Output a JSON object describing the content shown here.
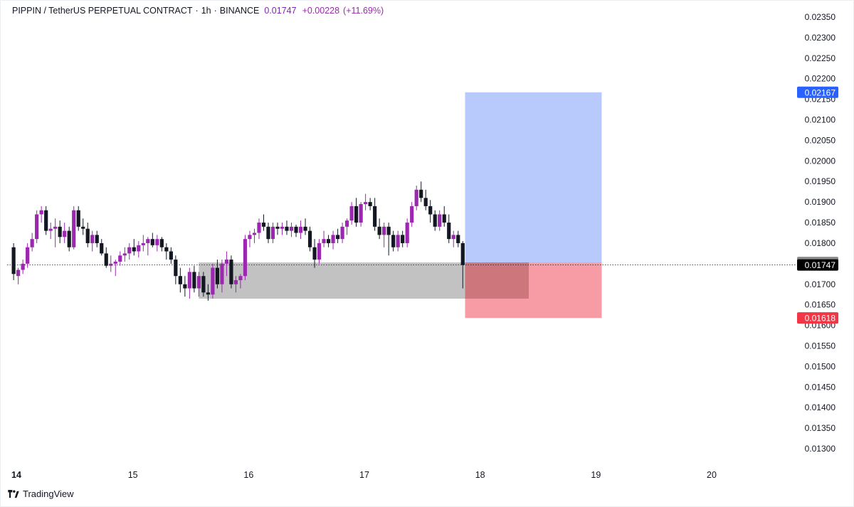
{
  "header": {
    "symbol": "PIPPIN / TetherUS PERPETUAL CONTRACT",
    "timeframe": "1h",
    "exchange": "BINANCE",
    "last_price": "0.01747",
    "change": "+0.00228",
    "change_pct": "(+11.69%)"
  },
  "footer": {
    "brand": "TradingView"
  },
  "colors": {
    "bull": "#9c27b0",
    "bear": "#131722",
    "profit_zone": "#b8c9fb",
    "loss_zone": "#f7979f",
    "support_zone": "#c2c2c2",
    "target_badge": "#2962ff",
    "stop_badge": "#f23645"
  },
  "chart_data": {
    "type": "candlestick",
    "title": "PIPPIN / TetherUS PERPETUAL CONTRACT · 1h · BINANCE",
    "ylim": [
      0.0128,
      0.0238
    ],
    "y_ticks": [
      "0.02350",
      "0.02300",
      "0.02250",
      "0.02200",
      "0.02150",
      "0.02100",
      "0.02050",
      "0.02000",
      "0.01950",
      "0.01900",
      "0.01850",
      "0.01800",
      "0.01750",
      "0.01700",
      "0.01650",
      "0.01600",
      "0.01550",
      "0.01500",
      "0.01450",
      "0.01400",
      "0.01350",
      "0.01300"
    ],
    "x_labels": [
      "14",
      "15",
      "16",
      "17",
      "18",
      "19",
      "20"
    ],
    "x_label_days": [
      14,
      15,
      16,
      17,
      18,
      19,
      20
    ],
    "price_labels": [
      {
        "value": 0.02167,
        "text": "0.02167",
        "role": "target"
      },
      {
        "value": 0.01753,
        "text": "0.01753",
        "role": "entry"
      },
      {
        "value": 0.01747,
        "text": "0.01747",
        "role": "last"
      },
      {
        "value": 0.01618,
        "text": "0.01618",
        "role": "stop"
      }
    ],
    "current_price": 0.01747,
    "long_position": {
      "start_day": 17.87,
      "end_day": 19.05,
      "entry": 0.01753,
      "target": 0.02167,
      "stop": 0.01618
    },
    "support_zone": {
      "start_day": 15.57,
      "end_day": 18.42,
      "top": 0.01753,
      "bottom": 0.01665
    },
    "candles": [
      {
        "day": 13.97,
        "o": 0.0179,
        "h": 0.018,
        "l": 0.0171,
        "c": 0.01725
      },
      {
        "day": 14.01,
        "o": 0.0172,
        "h": 0.0174,
        "l": 0.017,
        "c": 0.01735
      },
      {
        "day": 14.05,
        "o": 0.01735,
        "h": 0.0176,
        "l": 0.01725,
        "c": 0.0175
      },
      {
        "day": 14.09,
        "o": 0.0175,
        "h": 0.018,
        "l": 0.0174,
        "c": 0.0179
      },
      {
        "day": 14.13,
        "o": 0.0179,
        "h": 0.01825,
        "l": 0.0178,
        "c": 0.0181
      },
      {
        "day": 14.17,
        "o": 0.0181,
        "h": 0.0188,
        "l": 0.018,
        "c": 0.0187
      },
      {
        "day": 14.21,
        "o": 0.0187,
        "h": 0.0189,
        "l": 0.0185,
        "c": 0.0188
      },
      {
        "day": 14.25,
        "o": 0.0188,
        "h": 0.0189,
        "l": 0.0182,
        "c": 0.0183
      },
      {
        "day": 14.29,
        "o": 0.0183,
        "h": 0.0185,
        "l": 0.0181,
        "c": 0.01835
      },
      {
        "day": 14.33,
        "o": 0.01835,
        "h": 0.0186,
        "l": 0.0179,
        "c": 0.0184
      },
      {
        "day": 14.37,
        "o": 0.0184,
        "h": 0.01855,
        "l": 0.018,
        "c": 0.01815
      },
      {
        "day": 14.41,
        "o": 0.01815,
        "h": 0.0185,
        "l": 0.018,
        "c": 0.0183
      },
      {
        "day": 14.45,
        "o": 0.0183,
        "h": 0.0184,
        "l": 0.0178,
        "c": 0.0179
      },
      {
        "day": 14.49,
        "o": 0.0179,
        "h": 0.0189,
        "l": 0.01785,
        "c": 0.0188
      },
      {
        "day": 14.53,
        "o": 0.0188,
        "h": 0.0189,
        "l": 0.0183,
        "c": 0.0184
      },
      {
        "day": 14.57,
        "o": 0.0184,
        "h": 0.0186,
        "l": 0.0182,
        "c": 0.01835
      },
      {
        "day": 14.61,
        "o": 0.01835,
        "h": 0.0185,
        "l": 0.0179,
        "c": 0.018
      },
      {
        "day": 14.65,
        "o": 0.018,
        "h": 0.0183,
        "l": 0.0178,
        "c": 0.0182
      },
      {
        "day": 14.69,
        "o": 0.0182,
        "h": 0.0183,
        "l": 0.0179,
        "c": 0.018
      },
      {
        "day": 14.73,
        "o": 0.018,
        "h": 0.0181,
        "l": 0.0177,
        "c": 0.01775
      },
      {
        "day": 14.77,
        "o": 0.01775,
        "h": 0.0179,
        "l": 0.0174,
        "c": 0.01745
      },
      {
        "day": 14.81,
        "o": 0.01745,
        "h": 0.0177,
        "l": 0.0173,
        "c": 0.0175
      },
      {
        "day": 14.85,
        "o": 0.0175,
        "h": 0.0176,
        "l": 0.0172,
        "c": 0.01755
      },
      {
        "day": 14.89,
        "o": 0.01755,
        "h": 0.0178,
        "l": 0.01745,
        "c": 0.0177
      },
      {
        "day": 14.93,
        "o": 0.0177,
        "h": 0.0179,
        "l": 0.01755,
        "c": 0.01775
      },
      {
        "day": 14.97,
        "o": 0.01775,
        "h": 0.018,
        "l": 0.0176,
        "c": 0.0179
      },
      {
        "day": 15.01,
        "o": 0.0179,
        "h": 0.0181,
        "l": 0.0177,
        "c": 0.0178
      },
      {
        "day": 15.05,
        "o": 0.0178,
        "h": 0.01805,
        "l": 0.01765,
        "c": 0.01795
      },
      {
        "day": 15.09,
        "o": 0.01795,
        "h": 0.0182,
        "l": 0.0178,
        "c": 0.018
      },
      {
        "day": 15.13,
        "o": 0.018,
        "h": 0.01815,
        "l": 0.0177,
        "c": 0.0181
      },
      {
        "day": 15.17,
        "o": 0.0181,
        "h": 0.01825,
        "l": 0.0179,
        "c": 0.01795
      },
      {
        "day": 15.21,
        "o": 0.01795,
        "h": 0.0182,
        "l": 0.0178,
        "c": 0.0181
      },
      {
        "day": 15.25,
        "o": 0.0181,
        "h": 0.01815,
        "l": 0.0178,
        "c": 0.0179
      },
      {
        "day": 15.29,
        "o": 0.0179,
        "h": 0.018,
        "l": 0.0176,
        "c": 0.0178
      },
      {
        "day": 15.33,
        "o": 0.0178,
        "h": 0.0179,
        "l": 0.0175,
        "c": 0.0176
      },
      {
        "day": 15.37,
        "o": 0.0176,
        "h": 0.0177,
        "l": 0.017,
        "c": 0.0172
      },
      {
        "day": 15.41,
        "o": 0.0172,
        "h": 0.0174,
        "l": 0.0168,
        "c": 0.017
      },
      {
        "day": 15.45,
        "o": 0.017,
        "h": 0.0172,
        "l": 0.0167,
        "c": 0.0169
      },
      {
        "day": 15.49,
        "o": 0.0169,
        "h": 0.0174,
        "l": 0.01665,
        "c": 0.0173
      },
      {
        "day": 15.53,
        "o": 0.0173,
        "h": 0.01745,
        "l": 0.0168,
        "c": 0.0169
      },
      {
        "day": 15.57,
        "o": 0.0169,
        "h": 0.0173,
        "l": 0.0167,
        "c": 0.0172
      },
      {
        "day": 15.61,
        "o": 0.0172,
        "h": 0.0173,
        "l": 0.0167,
        "c": 0.0168
      },
      {
        "day": 15.65,
        "o": 0.0168,
        "h": 0.017,
        "l": 0.0166,
        "c": 0.01675
      },
      {
        "day": 15.69,
        "o": 0.01675,
        "h": 0.0175,
        "l": 0.01665,
        "c": 0.0174
      },
      {
        "day": 15.73,
        "o": 0.0174,
        "h": 0.0176,
        "l": 0.0169,
        "c": 0.017
      },
      {
        "day": 15.77,
        "o": 0.017,
        "h": 0.0176,
        "l": 0.0168,
        "c": 0.0175
      },
      {
        "day": 15.81,
        "o": 0.0175,
        "h": 0.0178,
        "l": 0.0172,
        "c": 0.0176
      },
      {
        "day": 15.85,
        "o": 0.0176,
        "h": 0.0177,
        "l": 0.0169,
        "c": 0.017
      },
      {
        "day": 15.89,
        "o": 0.017,
        "h": 0.0172,
        "l": 0.0168,
        "c": 0.0171
      },
      {
        "day": 15.93,
        "o": 0.0171,
        "h": 0.01725,
        "l": 0.0169,
        "c": 0.0172
      },
      {
        "day": 15.97,
        "o": 0.0172,
        "h": 0.0182,
        "l": 0.0171,
        "c": 0.0181
      },
      {
        "day": 16.01,
        "o": 0.0181,
        "h": 0.0183,
        "l": 0.0179,
        "c": 0.0182
      },
      {
        "day": 16.05,
        "o": 0.0182,
        "h": 0.01835,
        "l": 0.018,
        "c": 0.01825
      },
      {
        "day": 16.09,
        "o": 0.01825,
        "h": 0.0186,
        "l": 0.0181,
        "c": 0.0185
      },
      {
        "day": 16.13,
        "o": 0.0185,
        "h": 0.0187,
        "l": 0.0183,
        "c": 0.0184
      },
      {
        "day": 16.17,
        "o": 0.0184,
        "h": 0.0185,
        "l": 0.018,
        "c": 0.0181
      },
      {
        "day": 16.21,
        "o": 0.0181,
        "h": 0.0185,
        "l": 0.018,
        "c": 0.0184
      },
      {
        "day": 16.25,
        "o": 0.0184,
        "h": 0.0185,
        "l": 0.0182,
        "c": 0.01835
      },
      {
        "day": 16.29,
        "o": 0.01835,
        "h": 0.0185,
        "l": 0.0182,
        "c": 0.0184
      },
      {
        "day": 16.33,
        "o": 0.0184,
        "h": 0.01855,
        "l": 0.0182,
        "c": 0.0183
      },
      {
        "day": 16.37,
        "o": 0.0183,
        "h": 0.0185,
        "l": 0.01815,
        "c": 0.0184
      },
      {
        "day": 16.41,
        "o": 0.0184,
        "h": 0.01845,
        "l": 0.01815,
        "c": 0.01825
      },
      {
        "day": 16.45,
        "o": 0.01825,
        "h": 0.01855,
        "l": 0.0181,
        "c": 0.0184
      },
      {
        "day": 16.49,
        "o": 0.0184,
        "h": 0.0186,
        "l": 0.0182,
        "c": 0.0183
      },
      {
        "day": 16.53,
        "o": 0.0183,
        "h": 0.0184,
        "l": 0.0178,
        "c": 0.0179
      },
      {
        "day": 16.57,
        "o": 0.0179,
        "h": 0.0181,
        "l": 0.0174,
        "c": 0.0176
      },
      {
        "day": 16.61,
        "o": 0.0176,
        "h": 0.0181,
        "l": 0.0175,
        "c": 0.018
      },
      {
        "day": 16.65,
        "o": 0.018,
        "h": 0.0183,
        "l": 0.0179,
        "c": 0.0181
      },
      {
        "day": 16.69,
        "o": 0.0181,
        "h": 0.0182,
        "l": 0.0179,
        "c": 0.018
      },
      {
        "day": 16.73,
        "o": 0.018,
        "h": 0.0183,
        "l": 0.01785,
        "c": 0.0182
      },
      {
        "day": 16.77,
        "o": 0.0182,
        "h": 0.01835,
        "l": 0.018,
        "c": 0.0181
      },
      {
        "day": 16.81,
        "o": 0.0181,
        "h": 0.0185,
        "l": 0.018,
        "c": 0.0184
      },
      {
        "day": 16.85,
        "o": 0.0184,
        "h": 0.0186,
        "l": 0.0182,
        "c": 0.01855
      },
      {
        "day": 16.89,
        "o": 0.01855,
        "h": 0.019,
        "l": 0.01845,
        "c": 0.0189
      },
      {
        "day": 16.93,
        "o": 0.0189,
        "h": 0.0191,
        "l": 0.0184,
        "c": 0.0185
      },
      {
        "day": 16.97,
        "o": 0.0185,
        "h": 0.019,
        "l": 0.0184,
        "c": 0.01895
      },
      {
        "day": 17.01,
        "o": 0.01895,
        "h": 0.0192,
        "l": 0.0188,
        "c": 0.019
      },
      {
        "day": 17.05,
        "o": 0.019,
        "h": 0.0191,
        "l": 0.0188,
        "c": 0.0189
      },
      {
        "day": 17.09,
        "o": 0.0189,
        "h": 0.0191,
        "l": 0.0183,
        "c": 0.0184
      },
      {
        "day": 17.13,
        "o": 0.0184,
        "h": 0.0186,
        "l": 0.0181,
        "c": 0.0182
      },
      {
        "day": 17.17,
        "o": 0.0182,
        "h": 0.0185,
        "l": 0.0179,
        "c": 0.0184
      },
      {
        "day": 17.21,
        "o": 0.0184,
        "h": 0.0185,
        "l": 0.0177,
        "c": 0.0182
      },
      {
        "day": 17.25,
        "o": 0.0182,
        "h": 0.0183,
        "l": 0.0178,
        "c": 0.0179
      },
      {
        "day": 17.29,
        "o": 0.0179,
        "h": 0.0183,
        "l": 0.0178,
        "c": 0.0182
      },
      {
        "day": 17.33,
        "o": 0.0182,
        "h": 0.0183,
        "l": 0.0179,
        "c": 0.018
      },
      {
        "day": 17.37,
        "o": 0.018,
        "h": 0.0186,
        "l": 0.0179,
        "c": 0.0185
      },
      {
        "day": 17.41,
        "o": 0.0185,
        "h": 0.019,
        "l": 0.0184,
        "c": 0.0189
      },
      {
        "day": 17.45,
        "o": 0.0189,
        "h": 0.0194,
        "l": 0.0188,
        "c": 0.0193
      },
      {
        "day": 17.49,
        "o": 0.0193,
        "h": 0.0195,
        "l": 0.019,
        "c": 0.0191
      },
      {
        "day": 17.53,
        "o": 0.0191,
        "h": 0.0193,
        "l": 0.0188,
        "c": 0.0189
      },
      {
        "day": 17.57,
        "o": 0.0189,
        "h": 0.01905,
        "l": 0.0185,
        "c": 0.0187
      },
      {
        "day": 17.61,
        "o": 0.0187,
        "h": 0.0188,
        "l": 0.0183,
        "c": 0.0184
      },
      {
        "day": 17.65,
        "o": 0.0184,
        "h": 0.0188,
        "l": 0.0183,
        "c": 0.0187
      },
      {
        "day": 17.69,
        "o": 0.0187,
        "h": 0.0189,
        "l": 0.0184,
        "c": 0.0185
      },
      {
        "day": 17.73,
        "o": 0.0185,
        "h": 0.0187,
        "l": 0.018,
        "c": 0.0181
      },
      {
        "day": 17.77,
        "o": 0.0181,
        "h": 0.0183,
        "l": 0.0179,
        "c": 0.0182
      },
      {
        "day": 17.81,
        "o": 0.0182,
        "h": 0.0183,
        "l": 0.0179,
        "c": 0.018
      },
      {
        "day": 17.85,
        "o": 0.018,
        "h": 0.01805,
        "l": 0.0169,
        "c": 0.01747
      }
    ]
  }
}
